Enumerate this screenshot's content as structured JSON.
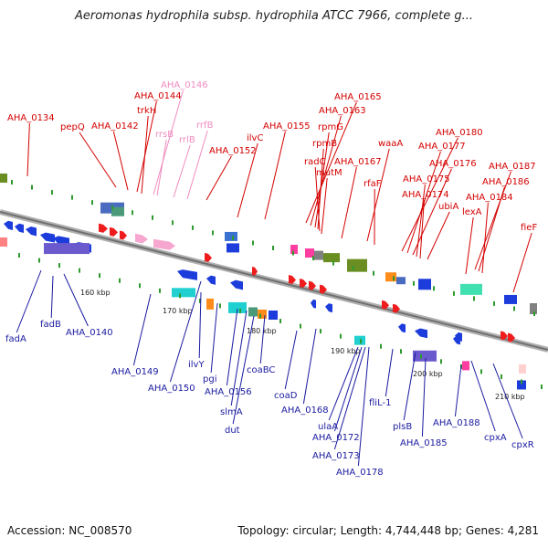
{
  "title": "Aeromonas hydrophila subsp. hydrophila ATCC 7966, complete g...",
  "accession": "Accession: NC_008570",
  "topology": "Topology: circular; Length: 4,744,448 bp; Genes: 4,281",
  "colors": {
    "top_label": "#d40000",
    "rna_label": "#f08cc0",
    "bottom_label": "#1a1aa0",
    "backbone": "#8a8a8a"
  },
  "kbp_ticks": [
    "160 kbp",
    "170 kbp",
    "180 kbp",
    "190 kbp",
    "200 kbp",
    "210 kbp"
  ],
  "top_labels": [
    "AHA_0134",
    "pepQ",
    "AHA_0142",
    "AHA_0144",
    "trkH",
    "AHA_0146",
    "rrsB",
    "rrlB",
    "rrfB",
    "AHA_0152",
    "ilvC",
    "AHA_0155",
    "AHA_0165",
    "AHA_0163",
    "rpmG",
    "rpmB",
    "radC",
    "mutM",
    "AHA_0167",
    "waaA",
    "rfaF",
    "AHA_0180",
    "AHA_0177",
    "AHA_0176",
    "AHA_0175",
    "AHA_0174",
    "ubiA",
    "AHA_0187",
    "AHA_0186",
    "AHA_0184",
    "lexA",
    "fieF"
  ],
  "bottom_labels": [
    "fadA",
    "fadB",
    "AHA_0140",
    "AHA_0149",
    "AHA_0150",
    "ilvY",
    "pgi",
    "AHA_0156",
    "coaBC",
    "slmA",
    "dut",
    "coaD",
    "AHA_0168",
    "ulaA",
    "AHA_0172",
    "AHA_0173",
    "AHA_0178",
    "fliL-1",
    "plsB",
    "AHA_0185",
    "AHA_0188",
    "cpxA",
    "cpxR"
  ]
}
